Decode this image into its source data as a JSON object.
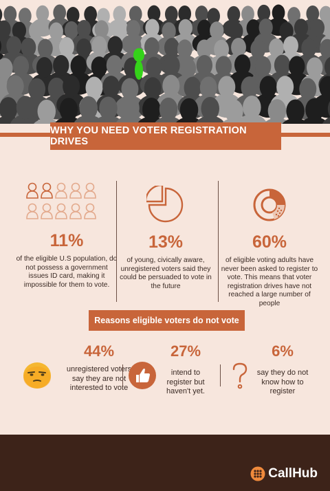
{
  "title": "WHY YOU NEED VOTER REGISTRATION DRIVES",
  "stats": [
    {
      "percent": "11%",
      "text": "of the eligible U.S population, do not possess a government issues ID card, making it impossible for them to vote.",
      "icon": "people-icon"
    },
    {
      "percent": "13%",
      "text": "of young, civically aware, unregistered voters said they could be persuaded to vote in the future",
      "icon": "pie-chart-icon"
    },
    {
      "percent": "60%",
      "text": "of eligible voting adults have never been asked to register to vote. This means that voter registration drives have not reached a large number of people",
      "icon": "donut-chart-icon"
    }
  ],
  "reasons_title": "Reasons eligible voters do not vote",
  "reasons": [
    {
      "percent": "44%",
      "text": "unregistered voters say they are not interested to vote",
      "icon": "bored-face-icon"
    },
    {
      "percent": "27%",
      "text": "intend to register but haven't yet.",
      "icon": "thumbs-up-icon"
    },
    {
      "percent": "6%",
      "text": "say they do not know how to register",
      "icon": "question-mark-icon"
    }
  ],
  "logo": "CallHub",
  "colors": {
    "accent": "#c8653a",
    "background": "#f7e6dd",
    "footer": "#3d2319",
    "highlight": "#35d21a"
  }
}
